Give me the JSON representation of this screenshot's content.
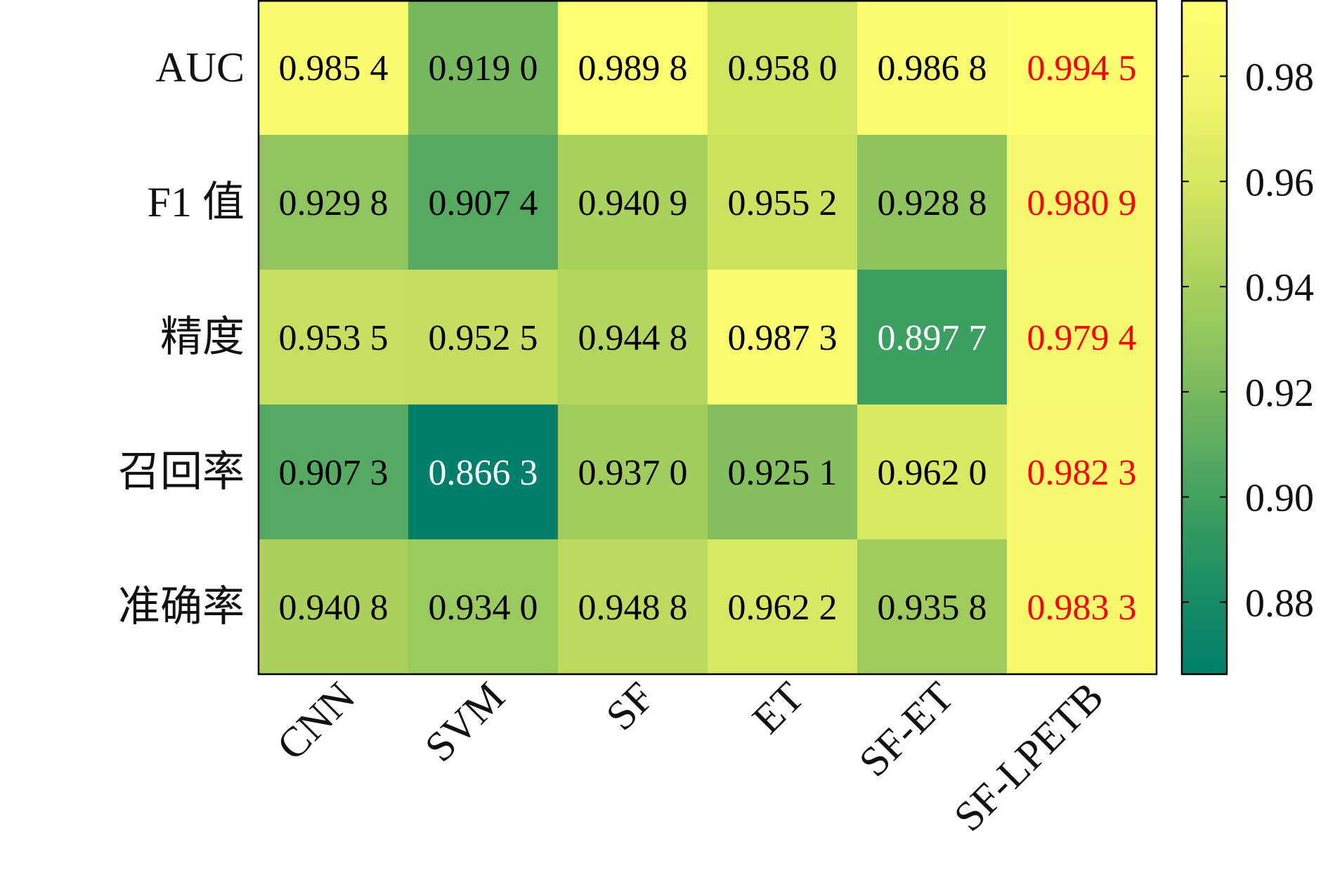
{
  "chart_data": {
    "type": "heatmap",
    "rows": [
      "AUC",
      "F1 值",
      "精度",
      "召回率",
      "准确率"
    ],
    "columns": [
      "CNN",
      "SVM",
      "SF",
      "ET",
      "SF-ET",
      "SF-LPETB"
    ],
    "values": [
      [
        0.9854,
        0.919,
        0.9898,
        0.958,
        0.9868,
        0.9945
      ],
      [
        0.9298,
        0.9074,
        0.9409,
        0.9552,
        0.9288,
        0.9809
      ],
      [
        0.9535,
        0.9525,
        0.9448,
        0.9873,
        0.8977,
        0.9794
      ],
      [
        0.9073,
        0.8663,
        0.937,
        0.9251,
        0.962,
        0.9823
      ],
      [
        0.9408,
        0.934,
        0.9488,
        0.9622,
        0.9358,
        0.9833
      ]
    ],
    "labels": [
      [
        "0.985 4",
        "0.919 0",
        "0.989 8",
        "0.958 0",
        "0.986 8",
        "0.994 5"
      ],
      [
        "0.929 8",
        "0.907 4",
        "0.940 9",
        "0.955 2",
        "0.928 8",
        "0.980 9"
      ],
      [
        "0.953 5",
        "0.952 5",
        "0.944 8",
        "0.987 3",
        "0.897 7",
        "0.979 4"
      ],
      [
        "0.907 3",
        "0.866 3",
        "0.937 0",
        "0.925 1",
        "0.962 0",
        "0.982 3"
      ],
      [
        "0.940 8",
        "0.934 0",
        "0.948 8",
        "0.962 2",
        "0.935 8",
        "0.983 3"
      ]
    ],
    "highlight_column": "SF-LPETB",
    "colorbar": {
      "range": [
        0.8663,
        0.9945
      ],
      "ticks": [
        0.88,
        0.9,
        0.92,
        0.94,
        0.96,
        0.98
      ],
      "tick_labels": [
        "0.88",
        "0.90",
        "0.92",
        "0.94",
        "0.96",
        "0.98"
      ]
    },
    "colormap": [
      "#00806a",
      "#1e8f64",
      "#4aa460",
      "#7bbb5e",
      "#a8cf5d",
      "#d1e460",
      "#f2f66b",
      "#ffff70"
    ],
    "highlight_color": "#ff0000",
    "dark_text_color": "#000000",
    "light_text_color": "#ffffff"
  }
}
